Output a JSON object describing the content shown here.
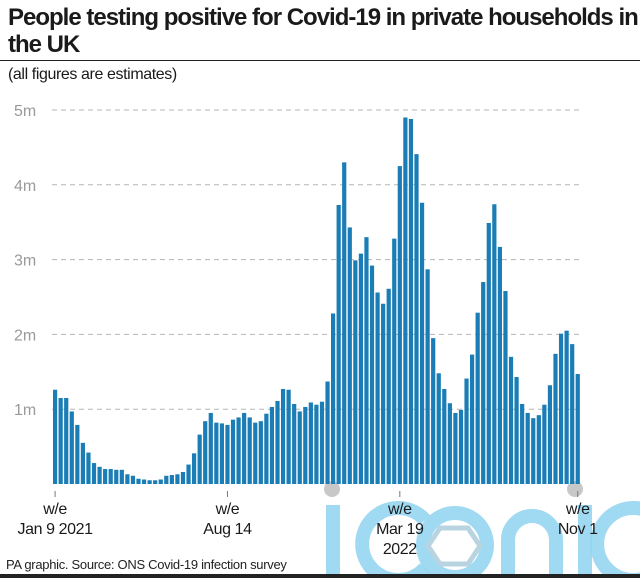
{
  "header": {
    "title": "People testing positive for Covid-19 in private households in the UK",
    "subtitle": "(all figures are estimates)"
  },
  "footer": {
    "source": "PA graphic. Source: ONS Covid-19 infection survey"
  },
  "watermark": {
    "text": "iconic",
    "color": "#8fd3f0"
  },
  "chart_data": {
    "type": "bar",
    "title": "People testing positive for Covid-19 in private households in the UK",
    "subtitle": "(all figures are estimates)",
    "xlabel": "",
    "ylabel": "",
    "unit": "millions",
    "ylim": [
      0,
      5
    ],
    "yticks": [
      1,
      2,
      3,
      4,
      5
    ],
    "ytick_labels": [
      "1m",
      "2m",
      "3m",
      "4m",
      "5m"
    ],
    "grid": true,
    "bar_color": "#1a7db5",
    "xticks": [
      {
        "index": 0,
        "line1": "w/e",
        "line2": "Jan 9 2021",
        "line3": ""
      },
      {
        "index": 31,
        "line1": "w/e",
        "line2": "Aug 14",
        "line3": ""
      },
      {
        "index": 62,
        "line1": "w/e",
        "line2": "Mar 19",
        "line3": "2022"
      },
      {
        "index": 94,
        "line1": "w/e",
        "line2": "Nov 1",
        "line3": ""
      }
    ],
    "values": [
      1.26,
      1.15,
      1.15,
      0.97,
      0.79,
      0.55,
      0.42,
      0.28,
      0.23,
      0.2,
      0.2,
      0.19,
      0.19,
      0.13,
      0.11,
      0.07,
      0.06,
      0.05,
      0.05,
      0.06,
      0.11,
      0.12,
      0.13,
      0.16,
      0.26,
      0.41,
      0.66,
      0.84,
      0.95,
      0.82,
      0.81,
      0.79,
      0.86,
      0.89,
      0.95,
      0.89,
      0.82,
      0.84,
      0.94,
      1.03,
      1.11,
      1.27,
      1.26,
      1.07,
      0.97,
      1.03,
      1.09,
      1.06,
      1.1,
      1.37,
      2.28,
      3.73,
      4.3,
      3.43,
      2.99,
      3.08,
      3.3,
      2.92,
      2.56,
      2.41,
      2.61,
      3.28,
      4.25,
      4.9,
      4.88,
      4.41,
      3.76,
      2.87,
      1.95,
      1.48,
      1.27,
      1.08,
      0.95,
      0.99,
      1.41,
      1.73,
      2.29,
      2.7,
      3.49,
      3.74,
      3.17,
      2.58,
      1.7,
      1.43,
      1.07,
      0.95,
      0.88,
      0.92,
      1.06,
      1.32,
      1.74,
      2.01,
      2.05,
      1.87,
      1.47
    ]
  }
}
